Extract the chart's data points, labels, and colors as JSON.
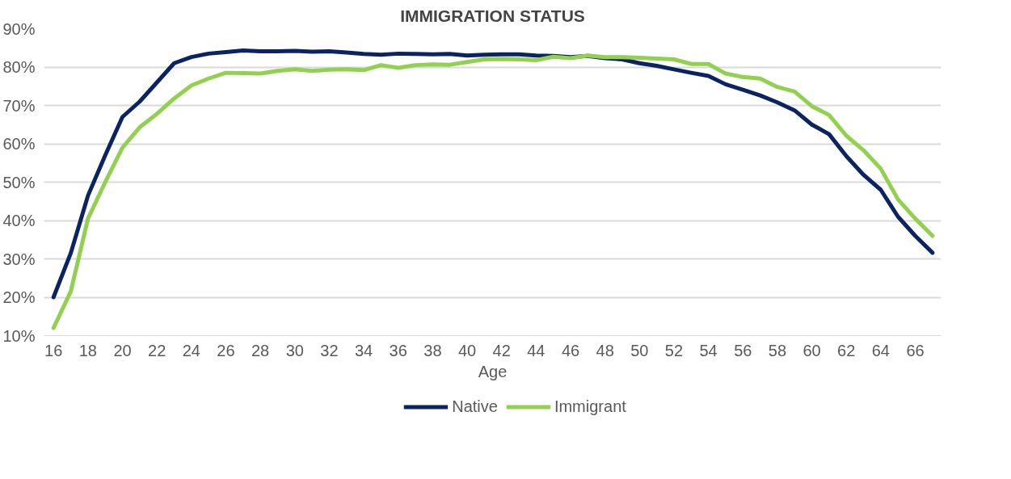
{
  "chart_data": {
    "type": "line",
    "title": "IMMIGRATION STATUS",
    "xlabel": "Age",
    "x": [
      16,
      17,
      18,
      19,
      20,
      21,
      22,
      23,
      24,
      25,
      26,
      27,
      28,
      29,
      30,
      31,
      32,
      33,
      34,
      35,
      36,
      37,
      38,
      39,
      40,
      41,
      42,
      43,
      44,
      45,
      46,
      47,
      48,
      49,
      50,
      51,
      52,
      53,
      54,
      55,
      56,
      57,
      58,
      59,
      60,
      61,
      62,
      63,
      64,
      65,
      66,
      67
    ],
    "series": [
      {
        "name": "Native",
        "color": "#0b2461",
        "values": [
          20,
          31.5,
          46.5,
          57,
          67,
          71,
          76,
          81,
          82.6,
          83.5,
          83.9,
          84.3,
          84.1,
          84.1,
          84.2,
          84,
          84.1,
          83.8,
          83.4,
          83.2,
          83.5,
          83.4,
          83.3,
          83.4,
          83,
          83.2,
          83.3,
          83.3,
          83,
          82.9,
          82.6,
          82.9,
          82.3,
          82,
          81,
          80.3,
          79.4,
          78.5,
          77.7,
          75.5,
          74.1,
          72.6,
          70.8,
          68.7,
          65,
          62.5,
          56.8,
          51.9,
          48,
          41,
          36,
          31.6
        ]
      },
      {
        "name": "Immigrant",
        "color": "#92d050",
        "values": [
          12,
          21.5,
          40.5,
          50,
          59,
          64.3,
          67.8,
          71.8,
          75.2,
          77,
          78.5,
          78.4,
          78.3,
          79,
          79.4,
          79,
          79.3,
          79.4,
          79.2,
          80.5,
          79.8,
          80.5,
          80.7,
          80.6,
          81.3,
          82,
          82.1,
          82,
          81.8,
          82.7,
          82.3,
          83,
          82.6,
          82.6,
          82.4,
          82.2,
          82,
          80.8,
          80.8,
          78.3,
          77.4,
          77,
          74.8,
          73.6,
          69.8,
          67.5,
          62.1,
          58.3,
          53.5,
          45.5,
          40.5,
          36
        ]
      }
    ],
    "xlim": [
      15.45,
      67.5
    ],
    "xticks": [
      16,
      18,
      20,
      22,
      24,
      26,
      28,
      30,
      32,
      34,
      36,
      38,
      40,
      42,
      44,
      46,
      48,
      50,
      52,
      54,
      56,
      58,
      60,
      62,
      64,
      66
    ],
    "ylim": [
      10,
      90
    ],
    "yticks": [
      {
        "value": 10,
        "label": "10%"
      },
      {
        "value": 20,
        "label": "20%"
      },
      {
        "value": 30,
        "label": "30%"
      },
      {
        "value": 40,
        "label": "40%"
      },
      {
        "value": 50,
        "label": "50%"
      },
      {
        "value": 60,
        "label": "60%"
      },
      {
        "value": 70,
        "label": "70%"
      },
      {
        "value": 80,
        "label": "80%"
      },
      {
        "value": 90,
        "label": "90%"
      }
    ],
    "grid": "y",
    "legend": "bottom",
    "marker": "none",
    "line_style": "solid"
  }
}
